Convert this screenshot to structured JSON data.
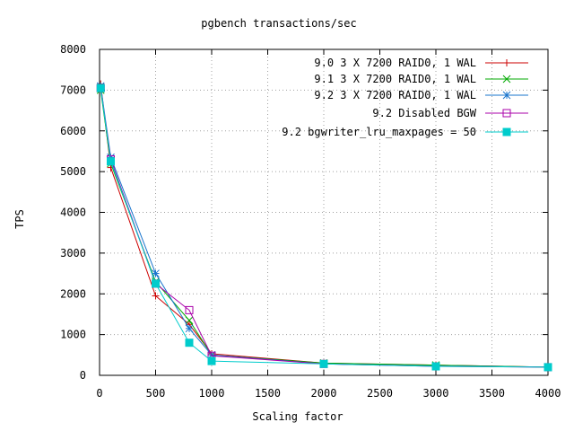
{
  "chart_data": {
    "type": "line",
    "title": "pgbench transactions/sec",
    "xlabel": "Scaling factor",
    "ylabel": "TPS",
    "xlim": [
      0,
      4000
    ],
    "ylim": [
      0,
      8000
    ],
    "xticks": [
      0,
      500,
      1000,
      1500,
      2000,
      2500,
      3000,
      3500,
      4000
    ],
    "yticks": [
      0,
      1000,
      2000,
      3000,
      4000,
      5000,
      6000,
      7000,
      8000
    ],
    "xtick_labels": [
      "0",
      "500",
      "1000",
      "1500",
      "2000",
      "2500",
      "3000",
      "3500",
      "4000"
    ],
    "ytick_labels": [
      "0",
      "1000",
      "2000",
      "3000",
      "4000",
      "5000",
      "6000",
      "7000",
      "8000"
    ],
    "grid": true,
    "legend_position": "top-right",
    "series": [
      {
        "name": "9.0 3 X 7200 RAID0, 1 WAL",
        "color": "#cc0000",
        "marker": "plus",
        "x": [
          10,
          100,
          500,
          800,
          1000,
          2000,
          3000,
          4000
        ],
        "y": [
          7150,
          5100,
          1950,
          1250,
          530,
          300,
          250,
          200
        ]
      },
      {
        "name": "9.1 3 X 7200 RAID0, 1 WAL",
        "color": "#00aa00",
        "marker": "cross",
        "x": [
          10,
          100,
          500,
          800,
          1000,
          2000,
          3000,
          4000
        ],
        "y": [
          7000,
          5200,
          2300,
          1350,
          500,
          300,
          250,
          200
        ]
      },
      {
        "name": "9.2 3 X 7200 RAID0, 1 WAL",
        "color": "#1874cd",
        "marker": "star",
        "x": [
          10,
          100,
          500,
          800,
          1000,
          2000,
          3000,
          4000
        ],
        "y": [
          7100,
          5350,
          2500,
          1150,
          500,
          280,
          230,
          200
        ]
      },
      {
        "name": "9.2 Disabled BGW",
        "color": "#aa00aa",
        "marker": "open-square",
        "x": [
          10,
          100,
          500,
          800,
          1000,
          2000,
          3000,
          4000
        ],
        "y": [
          7050,
          5300,
          2250,
          1600,
          480,
          280,
          220,
          200
        ]
      },
      {
        "name": "9.2 bgwriter_lru_maxpages = 50",
        "color": "#00cccc",
        "marker": "filled-square",
        "x": [
          10,
          100,
          500,
          800,
          1000,
          2000,
          3000,
          4000
        ],
        "y": [
          7050,
          5250,
          2250,
          800,
          350,
          280,
          220,
          200
        ]
      }
    ]
  }
}
